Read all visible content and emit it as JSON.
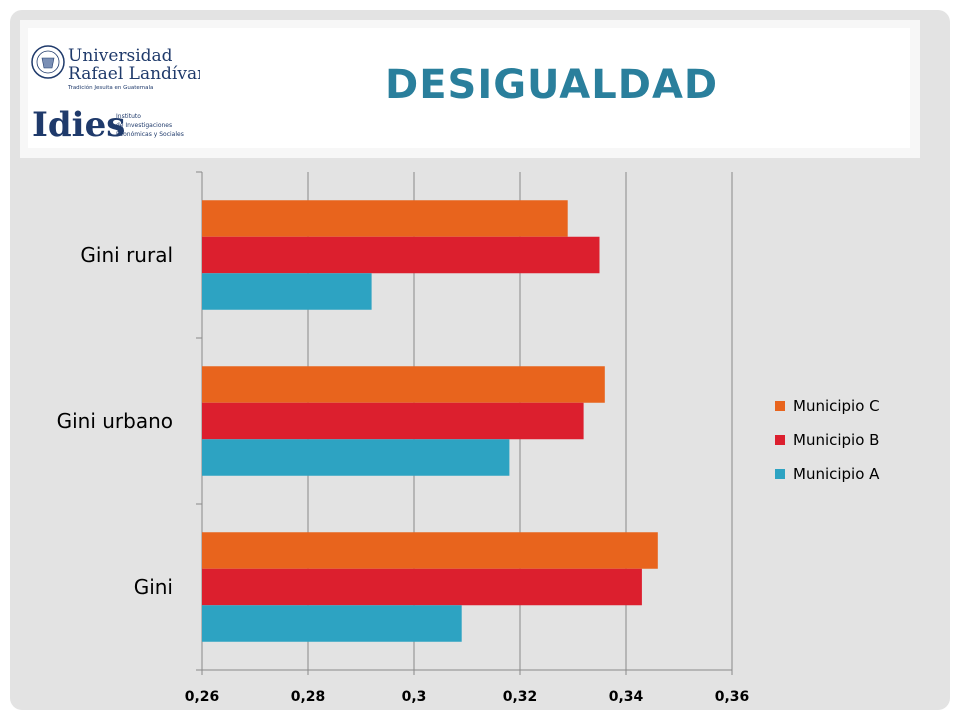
{
  "slide": {
    "title": "DESIGUALDAD",
    "title_color": "#2a7f9c"
  },
  "logo": {
    "university_name_line1": "Universidad",
    "university_name_line2": "Rafael Landívar",
    "university_tagline": "Tradición Jesuita en Guatemala",
    "institute_short": "Idies",
    "institute_name_line1": "Instituto",
    "institute_name_line2": "de Investigaciones",
    "institute_name_line3": "Económicas y Sociales"
  },
  "chart_data": {
    "type": "bar",
    "orientation": "horizontal",
    "categories": [
      "Gini rural",
      "Gini urbano",
      "Gini"
    ],
    "series": [
      {
        "name": "Municipio C",
        "color": "#e8641d",
        "values": [
          0.329,
          0.336,
          0.346
        ]
      },
      {
        "name": "Municipio B",
        "color": "#dc1f2e",
        "values": [
          0.335,
          0.332,
          0.343
        ]
      },
      {
        "name": "Municipio A",
        "color": "#2da3c2",
        "values": [
          0.292,
          0.318,
          0.309
        ]
      }
    ],
    "xlim": [
      0.26,
      0.36
    ],
    "xticks": [
      "0,26",
      "0,28",
      "0,3",
      "0,32",
      "0,34",
      "0,36"
    ],
    "grid": true,
    "legend_position": "right"
  }
}
